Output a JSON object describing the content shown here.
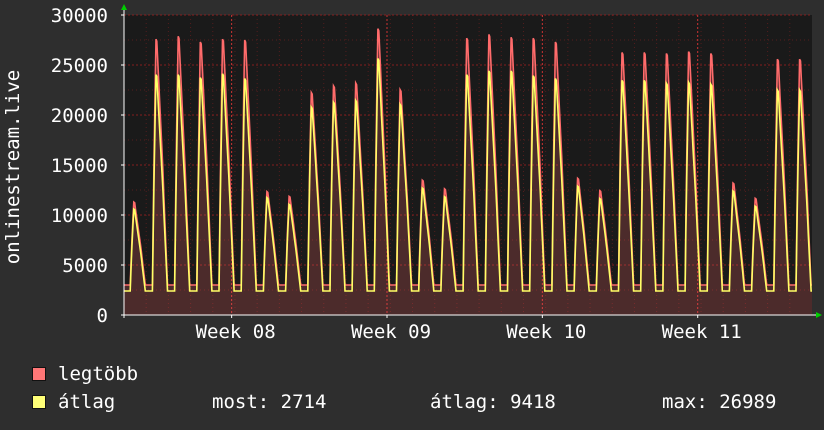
{
  "chart_data": {
    "type": "area",
    "ylabel": "onlinestream.live",
    "ylim": [
      0,
      30000
    ],
    "yticks": [
      0,
      5000,
      10000,
      15000,
      20000,
      25000,
      30000
    ],
    "x_tick_labels": [
      "Week 08",
      "Week 09",
      "Week 10",
      "Week 11"
    ],
    "x_range_days": [
      0,
      31
    ],
    "x_tick_days": [
      4.85,
      11.85,
      18.85,
      25.85
    ],
    "grid": true,
    "series": [
      {
        "name": "legtöbb",
        "color": "#ff6b6b",
        "daily_peaks": [
          11700,
          28800,
          29100,
          28500,
          28800,
          28700,
          12800,
          12300,
          23200,
          23900,
          24200,
          29900,
          23500,
          14000,
          13100,
          28900,
          29300,
          29000,
          28900,
          28500,
          14200,
          12900,
          27400,
          27400,
          27300,
          27500,
          27300,
          13700,
          12100,
          26700
        ]
      },
      {
        "name": "átlag",
        "color": "#ffff66",
        "daily_peaks": [
          11000,
          25100,
          25100,
          24800,
          25200,
          24700,
          12200,
          11500,
          21700,
          22200,
          22400,
          26800,
          22000,
          13200,
          12300,
          25100,
          25500,
          25500,
          25000,
          24700,
          13400,
          12100,
          24500,
          24500,
          24200,
          24300,
          24100,
          12900,
          11300,
          23500
        ],
        "daily_minimum": 2400
      }
    ]
  },
  "legend": {
    "max_label": "legtöbb",
    "avg_label": "átlag"
  },
  "stats": {
    "now": "most: 2714",
    "average": "átlag: 9418",
    "maximum": "max: 26989"
  },
  "colors": {
    "background": "#2e2e2e",
    "plot_background": "#1a1a1a",
    "grid": "#8a2020",
    "axis": "#ffffff",
    "arrow": "#00cc00"
  }
}
